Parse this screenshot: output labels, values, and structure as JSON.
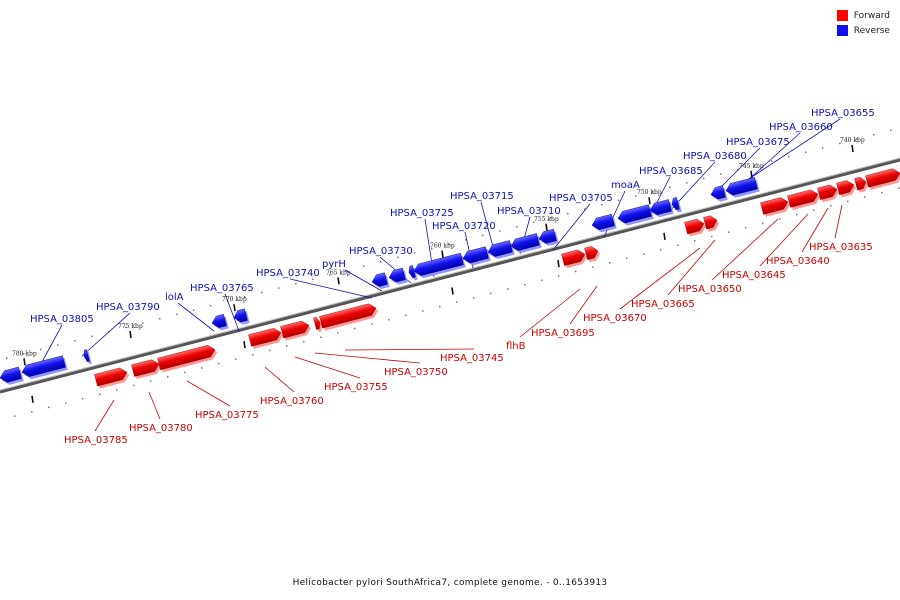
{
  "legend": {
    "forward_label": "Forward",
    "reverse_label": "Reverse",
    "forward_color": "#ff0000",
    "reverse_color": "#1010ee"
  },
  "caption": "Helicobacter pylori SouthAfrica7, complete genome. - 0..1653913",
  "scale_ticks": [
    "740 kbp",
    "745 kbp",
    "750 kbp",
    "755 kbp",
    "760 kbp",
    "765 kbp",
    "770 kbp",
    "775 kbp",
    "780 kbp"
  ],
  "reverse_genes": [
    "HPSA_03655",
    "HPSA_03660",
    "HPSA_03675",
    "HPSA_03680",
    "HPSA_03685",
    "moaA",
    "HPSA_03705",
    "HPSA_03710",
    "HPSA_03715",
    "HPSA_03720",
    "HPSA_03725",
    "HPSA_03730",
    "pyrH",
    "HPSA_03740",
    "HPSA_03765",
    "lolA",
    "HPSA_03790",
    "HPSA_03805"
  ],
  "forward_genes": [
    "HPSA_03635",
    "HPSA_03640",
    "HPSA_03645",
    "HPSA_03650",
    "HPSA_03665",
    "HPSA_03670",
    "HPSA_03695",
    "flhB",
    "HPSA_03745",
    "HPSA_03750",
    "HPSA_03755",
    "HPSA_03760",
    "HPSA_03775",
    "HPSA_03780",
    "HPSA_03785"
  ]
}
